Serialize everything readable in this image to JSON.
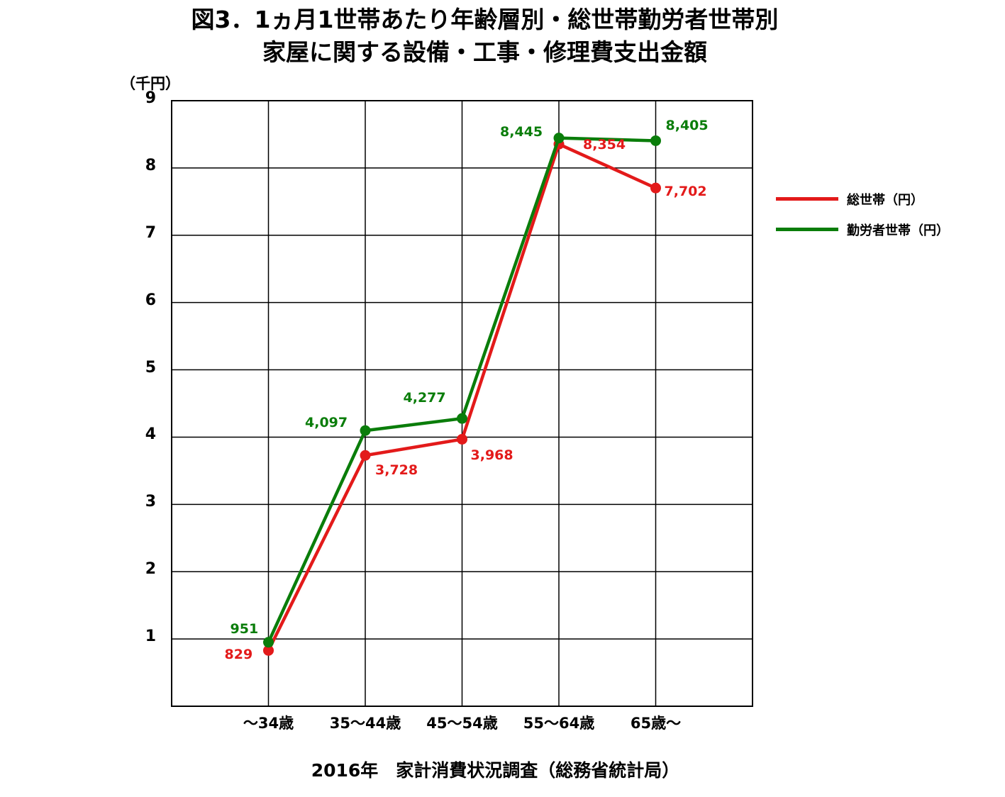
{
  "title_line1": "図3．1ヵ月1世帯あたり年齢層別・総世帯勤労者世帯別",
  "title_line2": "家屋に関する設備・工事・修理費支出金額",
  "source": "2016年　家計消費状況調査（総務省統計局）",
  "chart_data": {
    "type": "line",
    "title": "図3．1ヵ月1世帯あたり年齢層別・総世帯勤労者世帯別 家屋に関する設備・工事・修理費支出金額",
    "ylabel": "（千円）",
    "xlabel": "",
    "ylim": [
      0,
      9
    ],
    "yticks": [
      "1",
      "2",
      "3",
      "4",
      "5",
      "6",
      "7",
      "8",
      "9"
    ],
    "categories": [
      "～34歳",
      "35～44歳",
      "45～54歳",
      "55～64歳",
      "65歳～"
    ],
    "grid": true,
    "legend_position": "right",
    "series": [
      {
        "name": "総世帯（円）",
        "color": "#e31a1a",
        "values": [
          829,
          3728,
          3968,
          8354,
          7702
        ],
        "labels": [
          "829",
          "3,728",
          "3,968",
          "8,354",
          "7,702"
        ]
      },
      {
        "name": "勤労者世帯（円）",
        "color": "#0a7d0a",
        "values": [
          951,
          4097,
          4277,
          8445,
          8405
        ],
        "labels": [
          "951",
          "4,097",
          "4,277",
          "8,445",
          "8,405"
        ]
      }
    ]
  }
}
